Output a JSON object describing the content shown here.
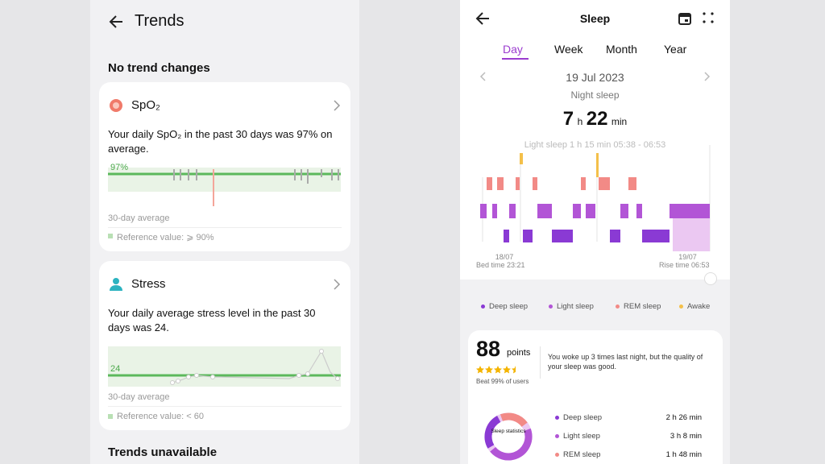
{
  "left": {
    "title": "Trends",
    "section_no_change": "No trend changes",
    "cards": [
      {
        "title": "SpO₂",
        "text": "Your daily SpO₂ in the past 30 days was 97% on average.",
        "chart_label": "97%",
        "average_label": "30-day average",
        "reference": "Reference value: ⩾ 90%"
      },
      {
        "title": "Stress",
        "text": "Your daily average stress level in the past 30 days was 24.",
        "chart_label": "24",
        "average_label": "30-day average",
        "reference": "Reference value: < 60"
      }
    ],
    "section_unavailable": "Trends unavailable"
  },
  "right": {
    "title": "Sleep",
    "tabs": [
      "Day",
      "Week",
      "Month",
      "Year"
    ],
    "date": "19 Jul 2023",
    "subtitle": "Night sleep",
    "duration": {
      "hours": "7",
      "hours_unit": "h",
      "minutes": "22",
      "minutes_unit": "min"
    },
    "tooltip": "Light sleep 1 h 15 min 05:38 - 06:53",
    "start_date": "18/07",
    "bed_time": "Bed time 23:21",
    "end_date": "19/07",
    "rise_time": "Rise time 06:53",
    "legend": [
      "Deep sleep",
      "Light sleep",
      "REM sleep",
      "Awake"
    ],
    "score": {
      "value": "88",
      "unit": "points",
      "beat": "Beat 99% of users",
      "message": "You woke up 3 times last night, but the quality of your sleep was good."
    },
    "donut_label": "Sleep statistics",
    "stats": [
      {
        "name": "Deep sleep",
        "value": "2 h 26 min"
      },
      {
        "name": "Light sleep",
        "value": "3 h 8 min"
      },
      {
        "name": "REM sleep",
        "value": "1 h 48 min"
      }
    ]
  }
}
